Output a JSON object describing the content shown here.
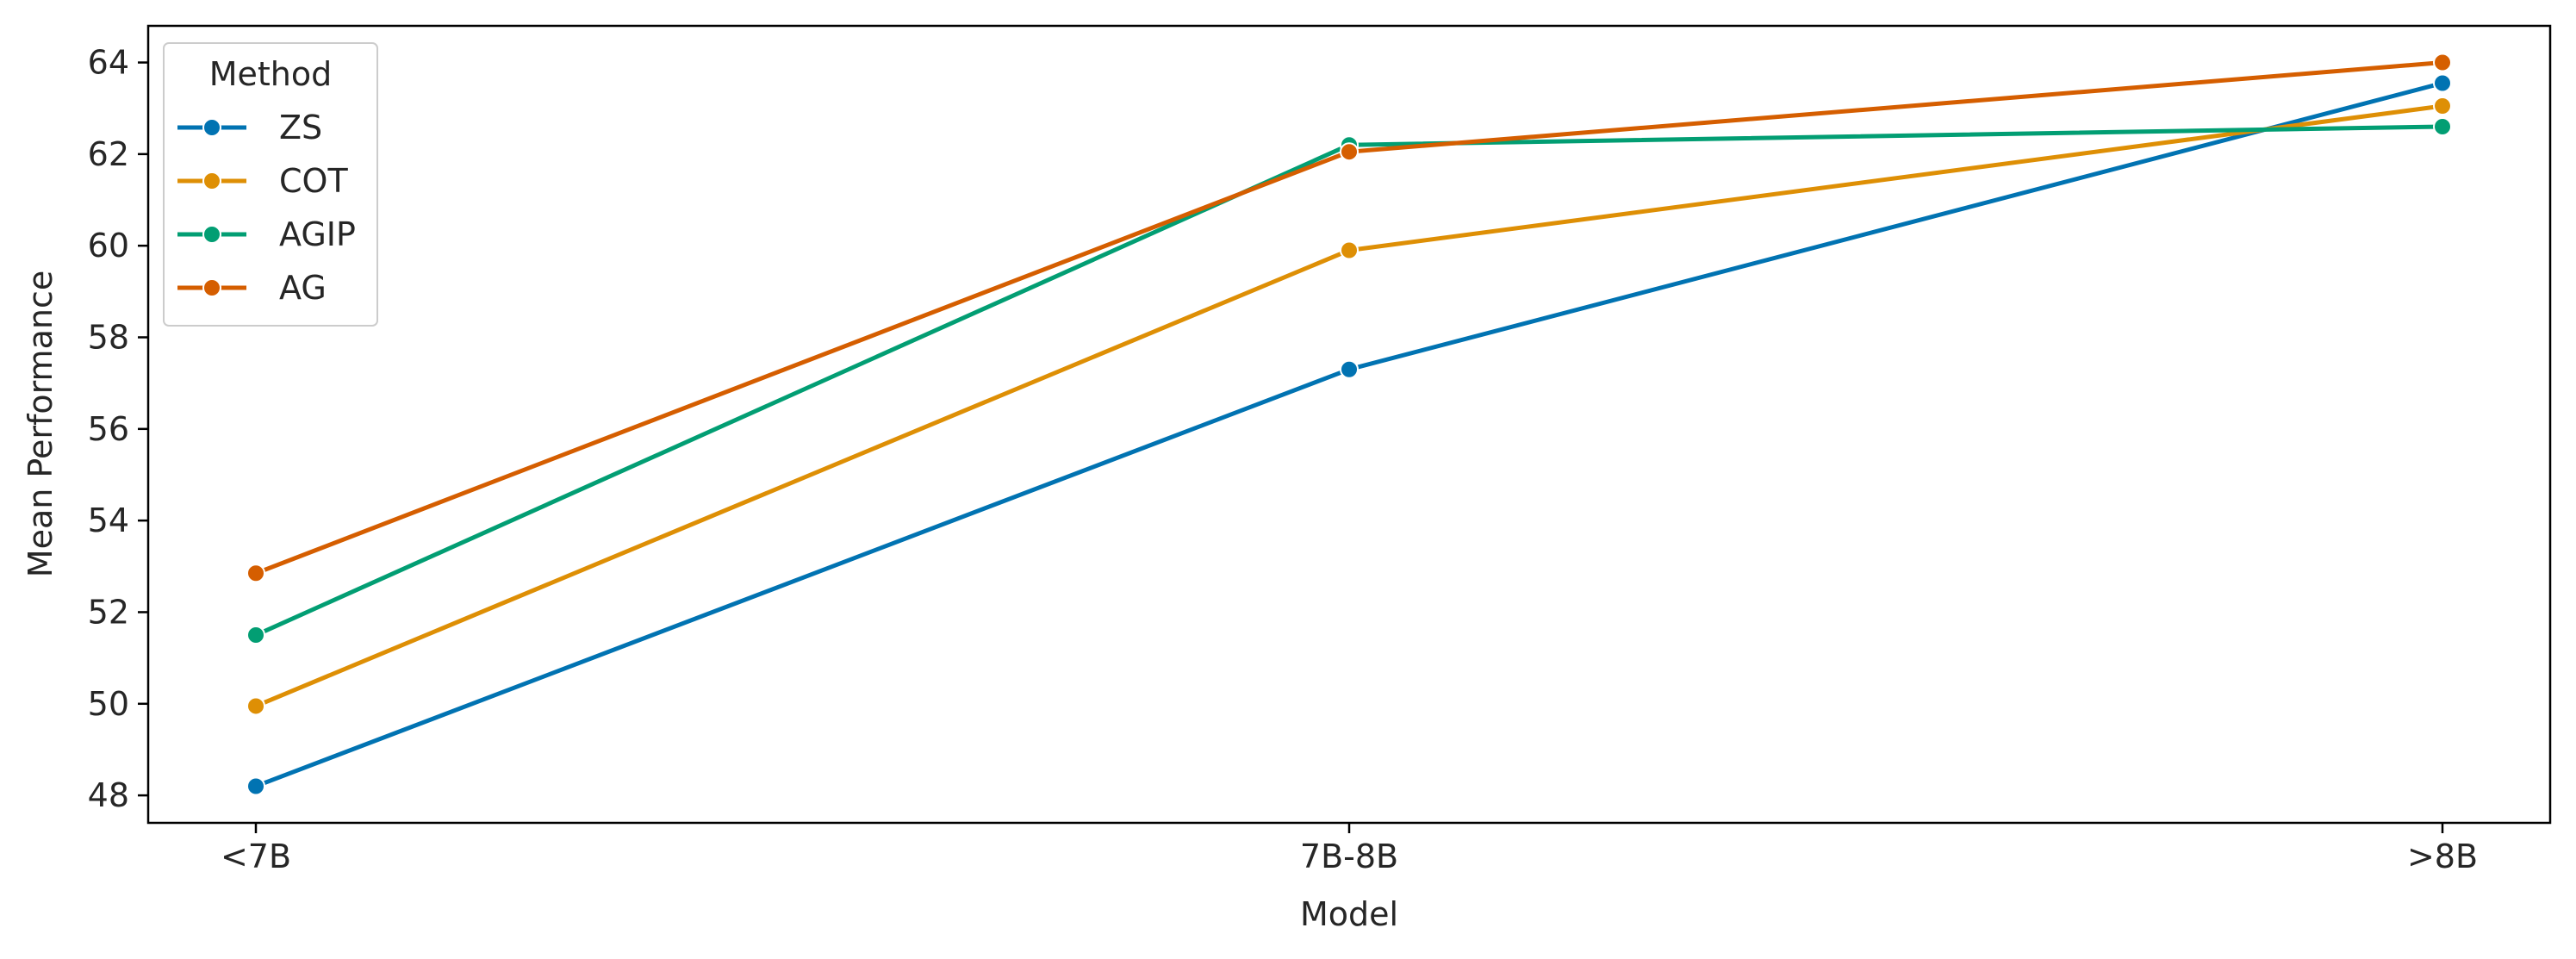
{
  "chart_data": {
    "type": "line",
    "xlabel": "Model",
    "ylabel": "Mean Performance",
    "categories": [
      "<7B",
      "7B-8B",
      ">8B"
    ],
    "ylim": [
      47.4,
      64.8
    ],
    "yticks": [
      48,
      50,
      52,
      54,
      56,
      58,
      60,
      62,
      64
    ],
    "grid": false,
    "legend": {
      "title": "Method",
      "placement": "top-left"
    },
    "series": [
      {
        "name": "ZS",
        "color": "#0173b2",
        "values": [
          48.2,
          57.3,
          63.55
        ]
      },
      {
        "name": "COT",
        "color": "#de8f05",
        "values": [
          49.95,
          59.9,
          63.05
        ]
      },
      {
        "name": "AGIP",
        "color": "#029e73",
        "values": [
          51.5,
          62.2,
          62.6
        ]
      },
      {
        "name": "AG",
        "color": "#d55e00",
        "values": [
          52.85,
          62.05,
          64.0
        ]
      }
    ]
  }
}
